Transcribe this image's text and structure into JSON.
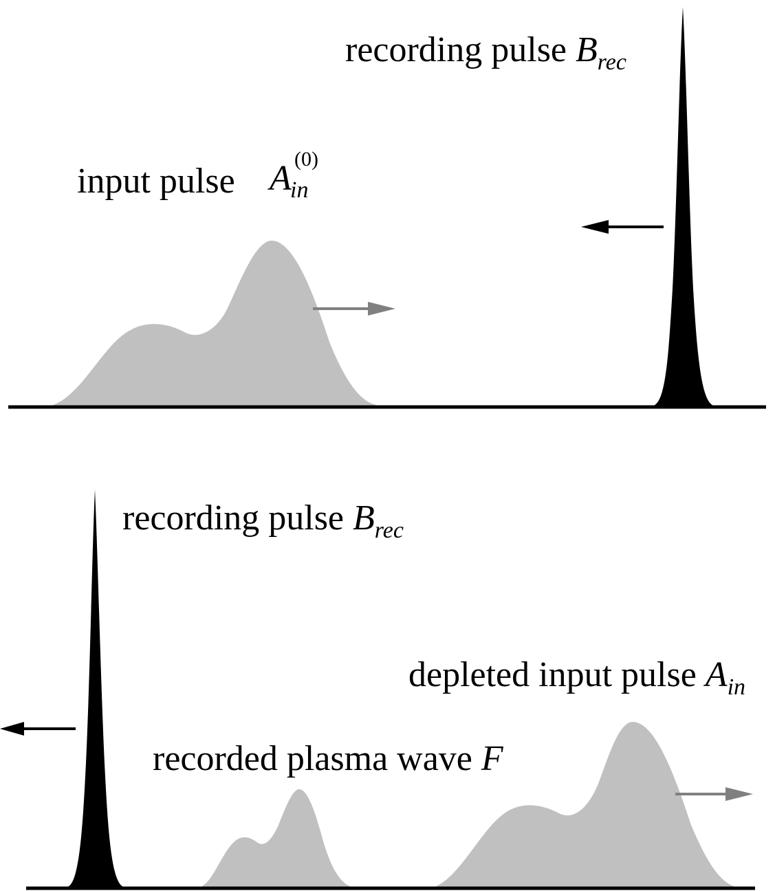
{
  "top_panel": {
    "recording_pulse": {
      "text": "recording pulse ",
      "symbol": "B",
      "subscript": "rec"
    },
    "input_pulse": {
      "text": "input pulse",
      "symbol": "A",
      "subscript": "in",
      "superscript": "(0)"
    }
  },
  "bottom_panel": {
    "recording_pulse": {
      "text": "recording pulse ",
      "symbol": "B",
      "subscript": "rec"
    },
    "depleted_pulse": {
      "text": "depleted input pulse ",
      "symbol": "A",
      "subscript": "in"
    },
    "plasma_wave": {
      "text": "recorded plasma wave ",
      "symbol": "F"
    }
  },
  "colors": {
    "input_pulse": "#c0c0c0",
    "recording_pulse": "#000000",
    "input_arrow": "#808080",
    "recording_arrow": "#000000",
    "baseline": "#000000"
  },
  "directions": {
    "input_pulse": "right",
    "recording_pulse": "left"
  }
}
